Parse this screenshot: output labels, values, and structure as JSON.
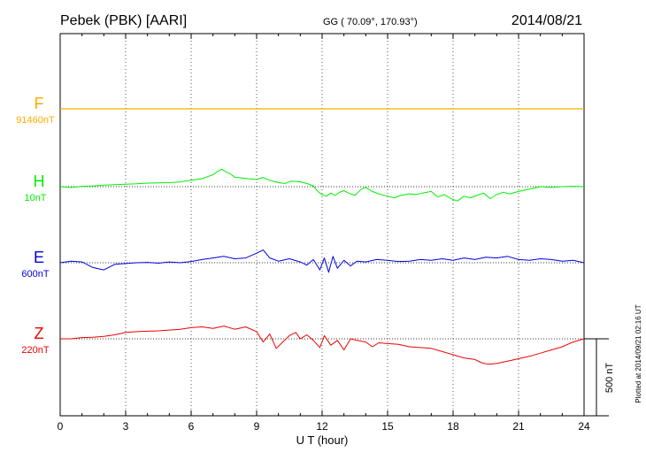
{
  "header": {
    "station": "Pebek (PBK)  [AARI]",
    "coords": "GG ( 70.09°, 170.93°)",
    "date": "2014/08/21"
  },
  "footer": {
    "plotted": "Plotted at 2014/09/21 02:16 UT"
  },
  "colors": {
    "F": "#ffaa00",
    "H": "#00ee00",
    "E": "#0000dd",
    "Z": "#ee0000",
    "grid": "#555555",
    "text": "#000000"
  },
  "chart_data": {
    "type": "line",
    "xlabel": "U T (hour)",
    "xlim": [
      0,
      24
    ],
    "xticks": [
      "0",
      "3",
      "6",
      "9",
      "12",
      "15",
      "18",
      "21",
      "24"
    ],
    "scale_bar_label": "500 nT",
    "scale_bar_nT": 500,
    "series": [
      {
        "name": "F",
        "baseline_label": "91460nT",
        "x": [
          0,
          2,
          4,
          6,
          8,
          10,
          12,
          14,
          16,
          18,
          20,
          22,
          24
        ],
        "y": [
          0,
          0,
          0,
          0,
          0,
          0,
          0,
          0,
          0,
          0,
          0,
          0,
          0
        ]
      },
      {
        "name": "H",
        "baseline_label": "10nT",
        "x": [
          0,
          0.5,
          1,
          1.5,
          2,
          2.5,
          3,
          3.5,
          4,
          4.5,
          5,
          5.5,
          6,
          6.5,
          6.8,
          7,
          7.2,
          7.4,
          7.6,
          7.8,
          8,
          8.3,
          8.6,
          9,
          9.3,
          9.6,
          10,
          10.3,
          10.6,
          11,
          11.3,
          11.6,
          11.8,
          12,
          12.2,
          12.4,
          12.6,
          12.8,
          13,
          13.2,
          13.5,
          13.8,
          14,
          14.3,
          14.6,
          15,
          15.3,
          15.6,
          16,
          16.3,
          16.6,
          17,
          17.3,
          17.6,
          17.9,
          18.2,
          18.5,
          18.8,
          19.1,
          19.4,
          19.7,
          20,
          20.3,
          20.6,
          21,
          21.5,
          22,
          22.5,
          23,
          23.5,
          24
        ],
        "y": [
          0,
          -5,
          2,
          4,
          10,
          12,
          15,
          18,
          22,
          24,
          25,
          30,
          40,
          50,
          65,
          75,
          95,
          110,
          92,
          80,
          60,
          55,
          50,
          45,
          58,
          40,
          25,
          20,
          35,
          30,
          20,
          5,
          -30,
          -50,
          -60,
          -40,
          -55,
          -35,
          -25,
          -40,
          -55,
          -15,
          -5,
          -30,
          -45,
          -60,
          -70,
          -55,
          -45,
          -50,
          -40,
          -30,
          -65,
          -50,
          -75,
          -90,
          -60,
          -70,
          -55,
          -40,
          -75,
          -50,
          -35,
          -45,
          -30,
          -15,
          0,
          -5,
          0,
          2,
          0
        ]
      },
      {
        "name": "E",
        "baseline_label": "600nT",
        "x": [
          0,
          0.5,
          1,
          1.5,
          2,
          2.5,
          3,
          3.5,
          4,
          4.5,
          5,
          5.5,
          6,
          6.5,
          7,
          7.5,
          8,
          8.5,
          9,
          9.3,
          9.6,
          10,
          10.5,
          11,
          11.3,
          11.6,
          11.9,
          12.1,
          12.3,
          12.5,
          12.7,
          13,
          13.3,
          13.6,
          14,
          14.5,
          15,
          15.5,
          16,
          16.5,
          17,
          17.5,
          18,
          18.5,
          19,
          19.5,
          20,
          20.5,
          21,
          21.5,
          22,
          22.5,
          23,
          23.5,
          24
        ],
        "y": [
          0,
          10,
          5,
          -30,
          -45,
          -10,
          -5,
          0,
          2,
          -3,
          5,
          0,
          8,
          20,
          30,
          40,
          25,
          30,
          60,
          80,
          30,
          10,
          25,
          5,
          -15,
          20,
          -45,
          30,
          -60,
          40,
          -35,
          15,
          -20,
          10,
          5,
          20,
          15,
          8,
          10,
          20,
          15,
          25,
          15,
          30,
          20,
          35,
          30,
          40,
          20,
          15,
          25,
          20,
          10,
          15,
          0
        ]
      },
      {
        "name": "Z",
        "baseline_label": "220nT",
        "x": [
          0,
          0.5,
          1,
          1.5,
          2,
          2.5,
          3,
          3.5,
          4,
          4.5,
          5,
          5.5,
          6,
          6.5,
          7,
          7.5,
          8,
          8.5,
          9,
          9.3,
          9.6,
          9.9,
          10.2,
          10.5,
          10.8,
          11,
          11.3,
          11.6,
          11.9,
          12.1,
          12.4,
          12.7,
          13,
          13.3,
          13.6,
          14,
          14.3,
          14.6,
          15,
          15.5,
          16,
          16.5,
          17,
          17.5,
          18,
          18.5,
          19,
          19.3,
          19.6,
          20,
          20.5,
          21,
          21.5,
          22,
          22.5,
          23,
          23.5,
          24
        ],
        "y": [
          0,
          0,
          8,
          10,
          15,
          25,
          40,
          45,
          48,
          50,
          55,
          60,
          70,
          75,
          65,
          80,
          60,
          75,
          45,
          -20,
          30,
          -60,
          -20,
          20,
          40,
          0,
          25,
          -10,
          -55,
          20,
          -40,
          -10,
          -70,
          0,
          -10,
          -20,
          -50,
          -25,
          -30,
          -35,
          -50,
          -55,
          -60,
          -80,
          -100,
          -120,
          -130,
          -150,
          -160,
          -155,
          -140,
          -125,
          -110,
          -90,
          -70,
          -50,
          -20,
          0
        ]
      }
    ]
  }
}
